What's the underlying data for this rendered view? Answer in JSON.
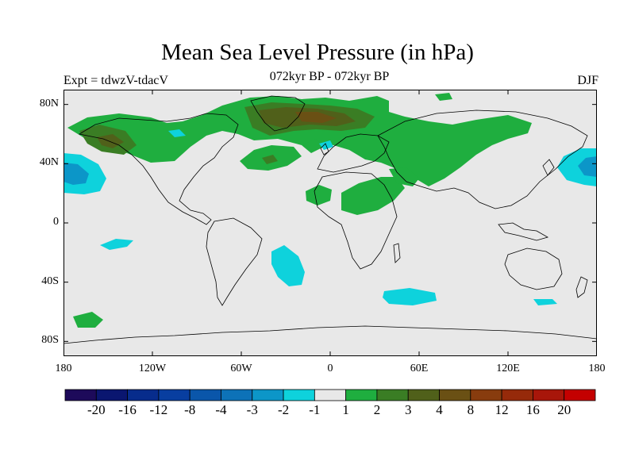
{
  "title": "Mean Sea Level Pressure (in hPa)",
  "left_label": "Expt = tdwzV-tdacV",
  "center_label": "072kyr BP - 072kyr BP",
  "right_label": "DJF",
  "y_ticks": [
    {
      "label": "80N",
      "lat": 80
    },
    {
      "label": "40N",
      "lat": 40
    },
    {
      "label": "0",
      "lat": 0
    },
    {
      "label": "40S",
      "lat": -40
    },
    {
      "label": "80S",
      "lat": -80
    }
  ],
  "x_ticks": [
    {
      "label": "180",
      "lon": -180
    },
    {
      "label": "120W",
      "lon": -120
    },
    {
      "label": "60W",
      "lon": -60
    },
    {
      "label": "0",
      "lon": 0
    },
    {
      "label": "60E",
      "lon": 60
    },
    {
      "label": "120E",
      "lon": 120
    },
    {
      "label": "180",
      "lon": 180
    }
  ],
  "colorbar": {
    "colors": [
      "#1d0a5a",
      "#0a1670",
      "#072c8c",
      "#083ea0",
      "#0a56aa",
      "#0d72b8",
      "#0c96c8",
      "#0ed2dc",
      "#e8e8e8",
      "#1fae3f",
      "#3a7d24",
      "#50601a",
      "#6a5014",
      "#883c0e",
      "#962a0a",
      "#a8160a",
      "#c40000"
    ],
    "labels": [
      "-20",
      "-16",
      "-12",
      "-8",
      "-4",
      "-3",
      "-2",
      "-1",
      "1",
      "2",
      "3",
      "4",
      "8",
      "12",
      "16",
      "20"
    ]
  },
  "colors": {
    "background": "#e8e8e8",
    "land_outline": "#000000",
    "positive_1": "#1fae3f",
    "positive_2": "#3a7d24",
    "positive_3": "#50601a",
    "positive_4": "#6a5014",
    "negative_1": "#0ed2dc",
    "negative_2": "#0c96c8"
  }
}
